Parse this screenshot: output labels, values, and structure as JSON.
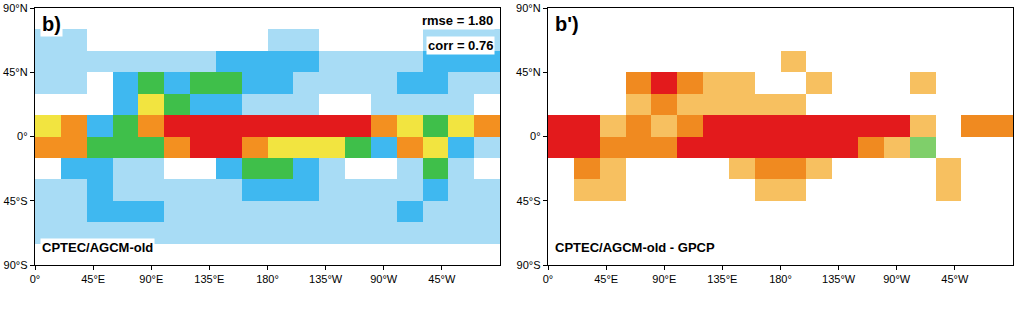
{
  "chart_data": [
    {
      "type": "heatmap",
      "title": "b)",
      "subtitle": "CPTEC/AGCM-old",
      "annotations": [
        "rmse = 1.80",
        "corr = 0.76"
      ],
      "grid": false,
      "x": [
        10,
        30,
        50,
        70,
        90,
        110,
        130,
        150,
        170,
        190,
        210,
        230,
        250,
        270,
        290,
        310,
        330,
        350
      ],
      "y": [
        -82.5,
        -67.5,
        -52.5,
        -37.5,
        -22.5,
        -7.5,
        7.5,
        22.5,
        37.5,
        52.5,
        67.5,
        82.5
      ],
      "values": [
        [
          0.2,
          0.2,
          0.2,
          0.2,
          0.2,
          0.2,
          0.2,
          0.2,
          0.2,
          0.2,
          0.2,
          0.2,
          0.2,
          0.2,
          0.2,
          0.2,
          0.2,
          0.2
        ],
        [
          1.2,
          1.2,
          1.2,
          1.2,
          1.2,
          1.2,
          1.2,
          1.2,
          1.2,
          1.2,
          1.2,
          1.2,
          1.2,
          1.2,
          1.2,
          1.2,
          1.2,
          1.2
        ],
        [
          2.5,
          2.8,
          3,
          3,
          3,
          2.8,
          2.6,
          2.6,
          2.8,
          2.6,
          2.5,
          2.5,
          2.5,
          2.6,
          3,
          2.8,
          2.6,
          2.5
        ],
        [
          1.5,
          2.5,
          3,
          2.5,
          2.5,
          2,
          1.5,
          2.5,
          3.5,
          3.5,
          3,
          2.2,
          1.5,
          1,
          1.5,
          3.5,
          2.5,
          1.5
        ],
        [
          0.5,
          4,
          3.5,
          1.5,
          1,
          0.8,
          0.8,
          3,
          6,
          6,
          4,
          1.5,
          0.5,
          0.3,
          1,
          5,
          2,
          0.5
        ],
        [
          9,
          10,
          5,
          6,
          6,
          10,
          12,
          12,
          9,
          8,
          8,
          7,
          5,
          3,
          10,
          8,
          3,
          2
        ],
        [
          8,
          9,
          4,
          6,
          9,
          11,
          12,
          13,
          13,
          12,
          12,
          12,
          11,
          10,
          8,
          5,
          8,
          9
        ],
        [
          0.3,
          0.3,
          0.3,
          4,
          8,
          5,
          3,
          3,
          2.5,
          2,
          1,
          0.5,
          0.5,
          2,
          2,
          1.5,
          1,
          0.3
        ],
        [
          1,
          1,
          0.8,
          3,
          6,
          4,
          5,
          5,
          4,
          3,
          2.5,
          1.5,
          1.5,
          2.5,
          4,
          4,
          2.5,
          1.5
        ],
        [
          2,
          1.5,
          1.2,
          1,
          1.2,
          1.5,
          2,
          3,
          4,
          4,
          3.5,
          2.5,
          1.5,
          1.5,
          2,
          3,
          3.5,
          3
        ],
        [
          1.5,
          1,
          0.8,
          0.8,
          0.8,
          0.8,
          0.8,
          0.8,
          0.8,
          1,
          1,
          0.8,
          0.8,
          0.8,
          0.8,
          1,
          1.5,
          2
        ],
        [
          0.3,
          0.3,
          0.3,
          0.3,
          0.3,
          0.3,
          0.3,
          0.3,
          0.3,
          0.3,
          0.3,
          0.3,
          0.3,
          0.3,
          0.3,
          0.3,
          0.3,
          0.3
        ]
      ],
      "zlim": [
        0,
        14
      ],
      "xlim": [
        0,
        360
      ],
      "xticks": [
        {
          "value": 0,
          "label": "0°"
        },
        {
          "value": 45,
          "label": "45°E"
        },
        {
          "value": 90,
          "label": "90°E"
        },
        {
          "value": 135,
          "label": "135°E"
        },
        {
          "value": 180,
          "label": "180°"
        },
        {
          "value": 225,
          "label": "135°W"
        },
        {
          "value": 270,
          "label": "90°W"
        },
        {
          "value": 315,
          "label": "45°W"
        }
      ],
      "ylim": [
        -90,
        90
      ],
      "yticks": [
        {
          "value": -90,
          "label": "90°S"
        },
        {
          "value": -45,
          "label": "45°S"
        },
        {
          "value": 0,
          "label": "0°"
        },
        {
          "value": 45,
          "label": "45°N"
        },
        {
          "value": 90,
          "label": "90°N"
        }
      ]
    },
    {
      "type": "heatmap",
      "title": "b')",
      "subtitle": "CPTEC/AGCM-old - GPCP",
      "grid": false,
      "x": [
        10,
        30,
        50,
        70,
        90,
        110,
        130,
        150,
        170,
        190,
        210,
        230,
        250,
        270,
        290,
        310,
        330,
        350
      ],
      "y": [
        -82.5,
        -67.5,
        -52.5,
        -37.5,
        -22.5,
        -7.5,
        7.5,
        22.5,
        37.5,
        52.5,
        67.5,
        82.5
      ],
      "values": [
        [
          0,
          0,
          0,
          0,
          0,
          0,
          0,
          0,
          0,
          0,
          0,
          0,
          0,
          0,
          0,
          0,
          0,
          0
        ],
        [
          0,
          0,
          0,
          0,
          0,
          0,
          0,
          0,
          0,
          0,
          0,
          0,
          0,
          0,
          0,
          0,
          0,
          0
        ],
        [
          0.3,
          0.3,
          0.3,
          0.3,
          0.3,
          0.3,
          0.3,
          0.3,
          0.3,
          0.3,
          0.3,
          0.3,
          0.3,
          0.3,
          0.3,
          0.3,
          0.3,
          0.3
        ],
        [
          0,
          1,
          1,
          0.5,
          0.3,
          0.3,
          0,
          0.5,
          1,
          1,
          0.5,
          0,
          0,
          0,
          0,
          1,
          0.3,
          0
        ],
        [
          0,
          2,
          1.5,
          0.5,
          0,
          0,
          0,
          1,
          2,
          2.5,
          1.5,
          0.5,
          0,
          0,
          -0.5,
          1,
          0.5,
          0
        ],
        [
          3,
          4,
          2,
          2,
          2,
          3,
          3,
          3.5,
          4,
          4,
          4,
          3.5,
          2.5,
          1,
          -2,
          0.5,
          0.5,
          0.5
        ],
        [
          3,
          3,
          1,
          2,
          1,
          2,
          3.5,
          4,
          5,
          5,
          5,
          5,
          4.5,
          3.5,
          1,
          0.5,
          2,
          2.5
        ],
        [
          0,
          0,
          0,
          1,
          2,
          1,
          1,
          1.5,
          1.5,
          1,
          0.3,
          0,
          0,
          0.5,
          0.5,
          0.5,
          0.5,
          0
        ],
        [
          0.5,
          0.3,
          0.3,
          2.5,
          3,
          2,
          1,
          1,
          0.5,
          0.5,
          1,
          0,
          0,
          0.3,
          1,
          0.5,
          0.3,
          0.3
        ],
        [
          0.3,
          0.3,
          0.3,
          0.5,
          0.5,
          0.5,
          0.5,
          0.3,
          0.5,
          1,
          0.5,
          0.3,
          0.3,
          0.3,
          0.5,
          0.5,
          0.5,
          0.5
        ],
        [
          0.3,
          0.3,
          0.3,
          0.3,
          0.3,
          0.3,
          0.3,
          0.3,
          0.3,
          0.3,
          0.3,
          0.3,
          0.3,
          0.3,
          0.3,
          0.3,
          0.3,
          0.3
        ],
        [
          0,
          0,
          0,
          0,
          0,
          0,
          0,
          0,
          0,
          0,
          0,
          0,
          0,
          0,
          0,
          0,
          0,
          0
        ]
      ],
      "zlim": [
        -5,
        5
      ],
      "xlim": [
        0,
        360
      ],
      "xticks": [
        {
          "value": 0,
          "label": "0°"
        },
        {
          "value": 45,
          "label": "45°E"
        },
        {
          "value": 90,
          "label": "90°E"
        },
        {
          "value": 135,
          "label": "135°E"
        },
        {
          "value": 180,
          "label": "180°"
        },
        {
          "value": 225,
          "label": "135°W"
        },
        {
          "value": 270,
          "label": "90°W"
        },
        {
          "value": 315,
          "label": "45°W"
        }
      ],
      "ylim": [
        -90,
        90
      ],
      "yticks": [
        {
          "value": -90,
          "label": "90°S"
        },
        {
          "value": -45,
          "label": "45°S"
        },
        {
          "value": 0,
          "label": "0°"
        },
        {
          "value": 45,
          "label": "45°N"
        },
        {
          "value": 90,
          "label": "90°N"
        }
      ]
    }
  ]
}
